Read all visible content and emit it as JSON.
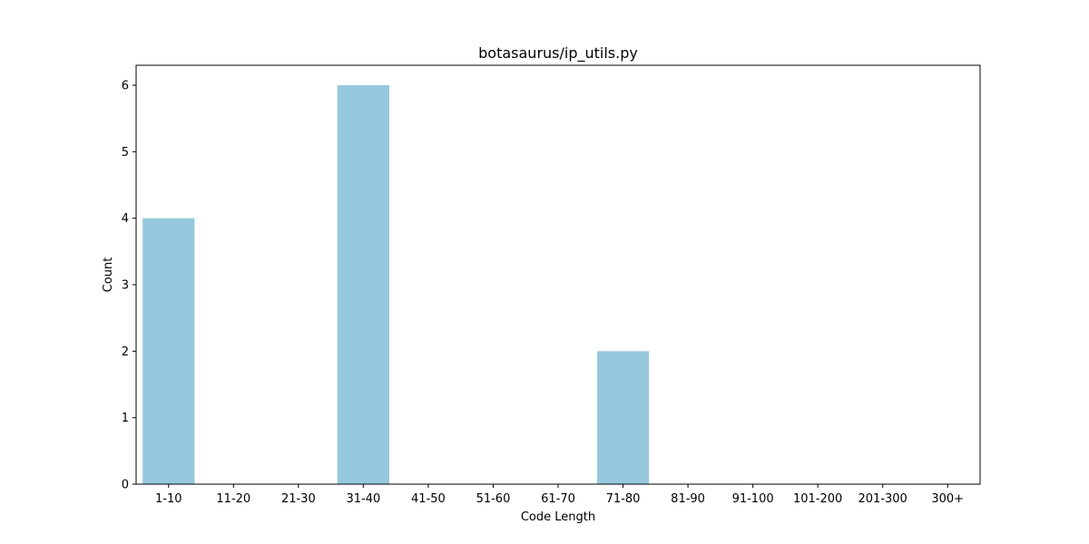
{
  "chart_data": {
    "type": "bar",
    "title": "botasaurus/ip_utils.py",
    "xlabel": "Code Length",
    "ylabel": "Count",
    "categories": [
      "1-10",
      "11-20",
      "21-30",
      "31-40",
      "41-50",
      "51-60",
      "61-70",
      "71-80",
      "81-90",
      "91-100",
      "101-200",
      "201-300",
      "300+"
    ],
    "values": [
      4,
      0,
      0,
      6,
      0,
      0,
      0,
      2,
      0,
      0,
      0,
      0,
      0
    ],
    "ylim": [
      0,
      6.3
    ],
    "yticks": [
      0,
      1,
      2,
      3,
      4,
      5,
      6
    ],
    "bar_color": "#96c9de",
    "grid": false,
    "legend": "none"
  }
}
